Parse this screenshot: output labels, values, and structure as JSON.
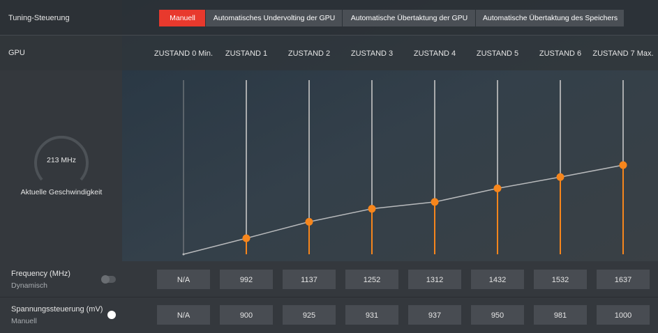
{
  "header": {
    "title": "Tuning-Steuerung",
    "tabs": [
      "Manuell",
      "Automatisches Undervolting der GPU",
      "Automatische Übertaktung der GPU",
      "Automatische Übertaktung des Speichers"
    ]
  },
  "gpu": {
    "label": "GPU",
    "states": [
      "ZUSTAND 0 Min.",
      "ZUSTAND 1",
      "ZUSTAND 2",
      "ZUSTAND 3",
      "ZUSTAND 4",
      "ZUSTAND 5",
      "ZUSTAND 6",
      "ZUSTAND 7 Max."
    ],
    "gauge": {
      "value": "213 MHz",
      "label": "Aktuelle Geschwindigkeit"
    }
  },
  "rows": [
    {
      "label": "Frequency (MHz)",
      "mode": "Dynamisch",
      "values": [
        "N/A",
        992,
        1137,
        1252,
        1312,
        1432,
        1532,
        1637
      ]
    },
    {
      "label": "Spannungssteuerung (mV)",
      "mode": "Manuell",
      "values": [
        "N/A",
        900,
        925,
        931,
        937,
        950,
        981,
        1000
      ]
    }
  ]
}
